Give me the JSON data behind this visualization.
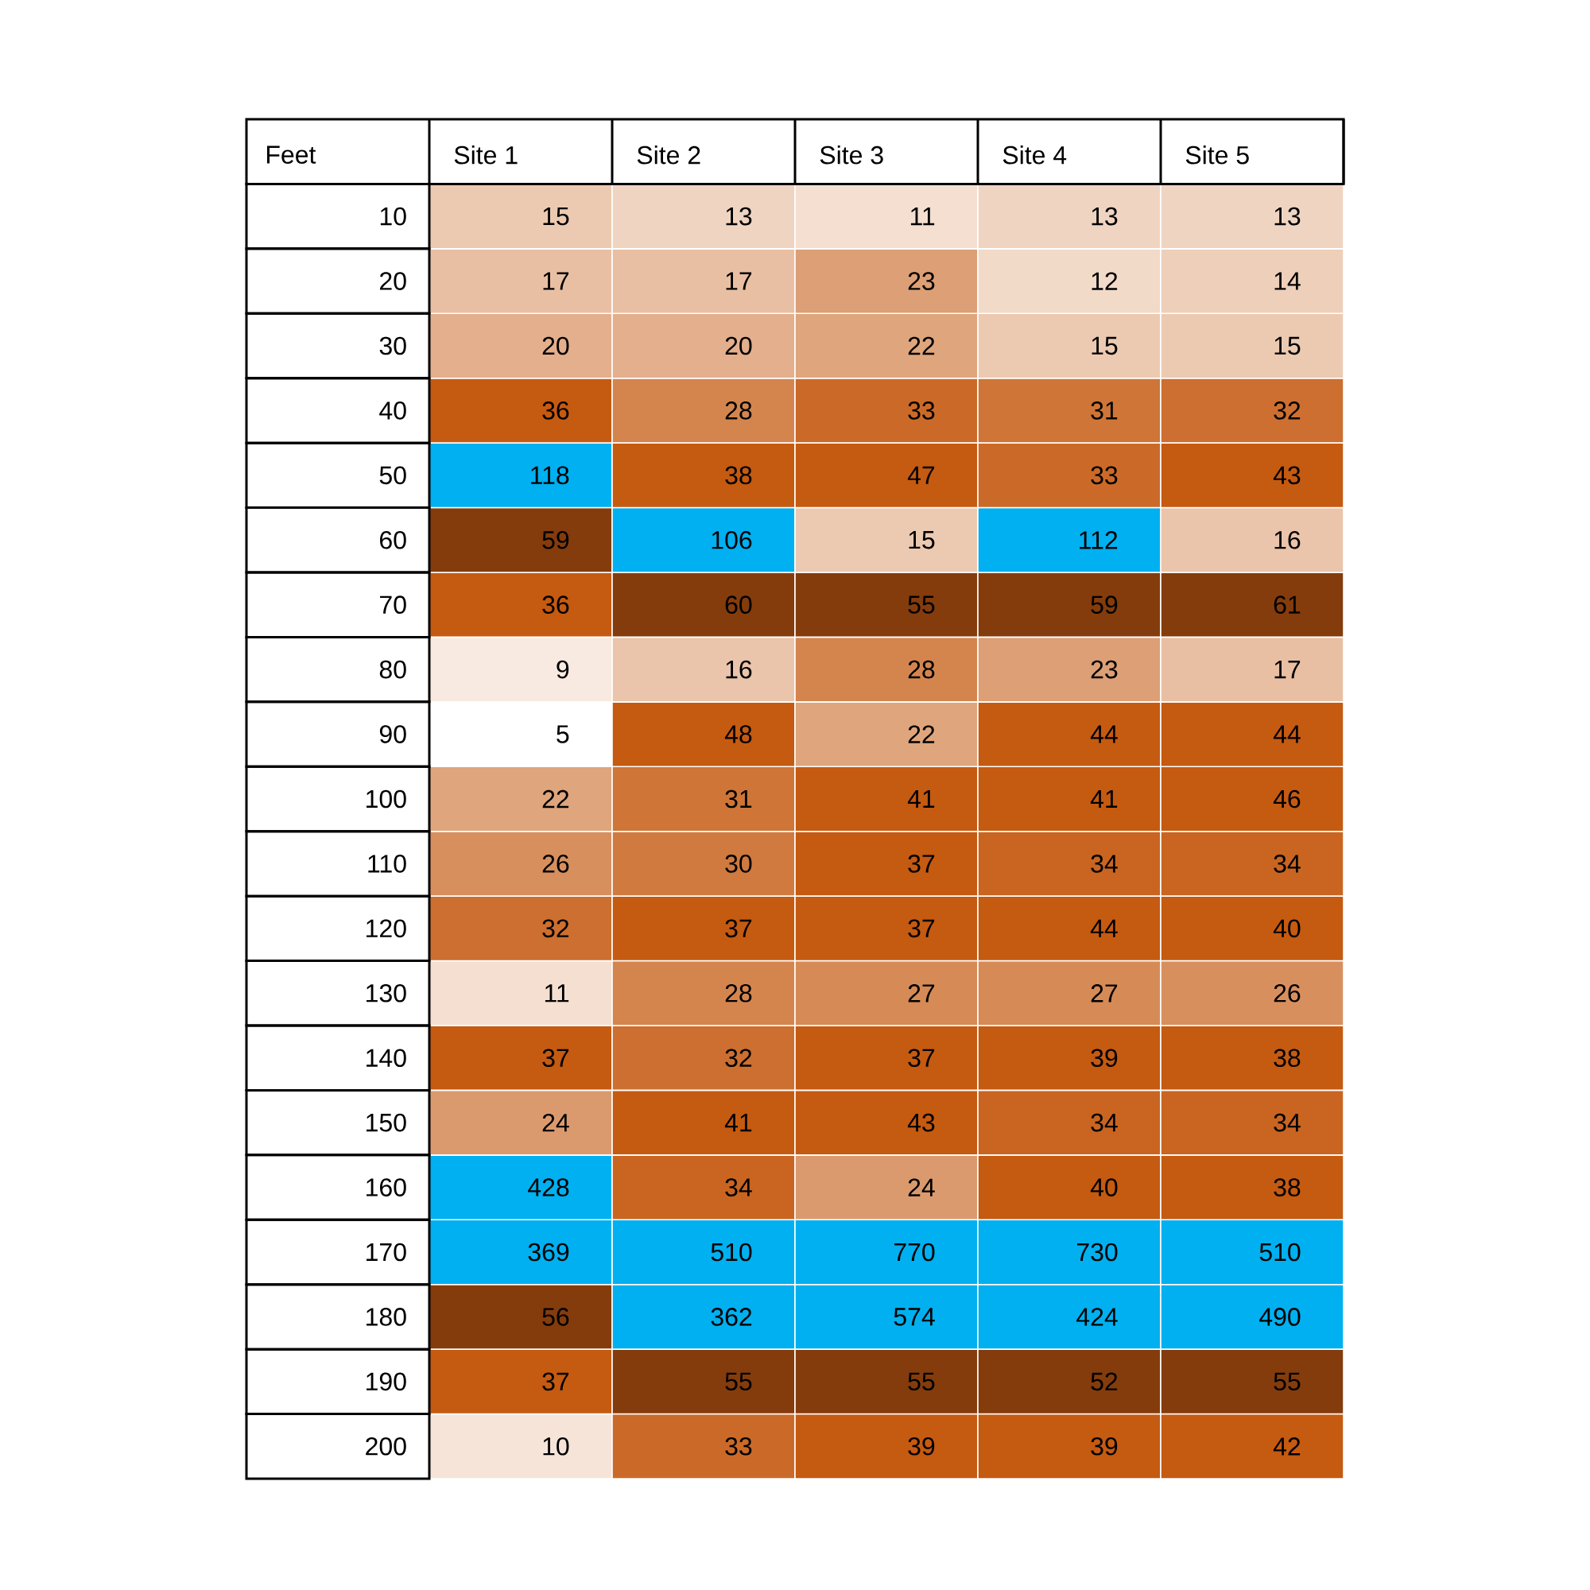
{
  "chart_data": {
    "type": "heatmap",
    "ylabel": "Feet",
    "categories": [
      "Site 1",
      "Site 2",
      "Site 3",
      "Site 4",
      "Site 5"
    ],
    "y_categories": [
      "10",
      "20",
      "30",
      "40",
      "50",
      "60",
      "70",
      "80",
      "90",
      "100",
      "110",
      "120",
      "130",
      "140",
      "150",
      "160",
      "170",
      "180",
      "190",
      "200"
    ],
    "cells": [
      [
        15,
        13,
        11,
        13,
        13
      ],
      [
        17,
        17,
        23,
        12,
        14
      ],
      [
        20,
        20,
        22,
        15,
        15
      ],
      [
        36,
        28,
        33,
        31,
        32
      ],
      [
        118,
        38,
        47,
        33,
        43
      ],
      [
        59,
        106,
        15,
        112,
        16
      ],
      [
        36,
        60,
        55,
        59,
        61
      ],
      [
        9,
        16,
        28,
        23,
        17
      ],
      [
        5,
        48,
        22,
        44,
        44
      ],
      [
        22,
        31,
        41,
        41,
        46
      ],
      [
        26,
        30,
        37,
        34,
        34
      ],
      [
        32,
        37,
        37,
        44,
        40
      ],
      [
        11,
        28,
        27,
        27,
        26
      ],
      [
        37,
        32,
        37,
        39,
        38
      ],
      [
        24,
        41,
        43,
        34,
        34
      ],
      [
        428,
        34,
        24,
        40,
        38
      ],
      [
        369,
        510,
        770,
        730,
        510
      ],
      [
        56,
        362,
        574,
        424,
        490
      ],
      [
        37,
        55,
        55,
        52,
        55
      ],
      [
        10,
        33,
        39,
        39,
        42
      ]
    ],
    "data_labels": true
  }
}
